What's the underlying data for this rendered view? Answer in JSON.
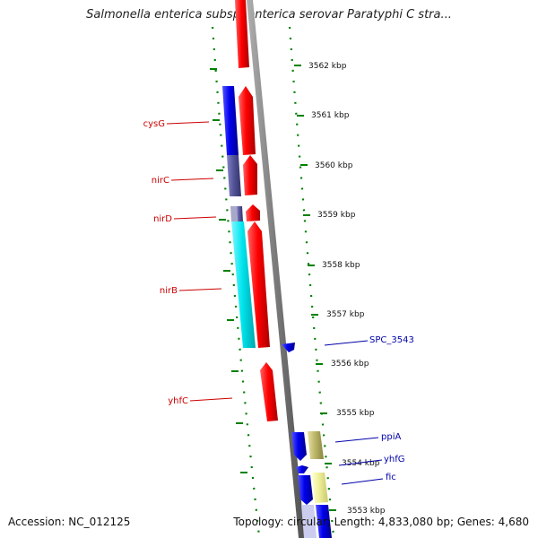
{
  "title": "Salmonella enterica subsp. enterica serovar Paratyphi C stra...",
  "footer": {
    "accession": "Accession: NC_012125",
    "topology": "Topology: circular; Length: 4,833,080 bp; Genes: 4,680"
  },
  "scale_labels": [
    "3562 kbp",
    "3561 kbp",
    "3560 kbp",
    "3559 kbp",
    "3558 kbp",
    "3557 kbp",
    "3556 kbp",
    "3555 kbp",
    "3554 kbp",
    "3553 kbp"
  ],
  "gene_labels_left": [
    "cysG",
    "nirC",
    "nirD",
    "nirB",
    "yhfC"
  ],
  "gene_labels_right": [
    "SPC_3543",
    "ppiA",
    "yhfG",
    "fic"
  ],
  "colors": {
    "forward_gene": "#ff0000",
    "reverse_gene": "#0000ee",
    "cyan_gene": "#00e5ee",
    "purple_gene": "#55559a",
    "khaki_gene": "#bdb76b",
    "pale_yellow_gene": "#eeee99",
    "backbone": "#808080",
    "tick_marks": "#008000",
    "left_label": "#cc0000",
    "right_label": "#0000aa"
  }
}
